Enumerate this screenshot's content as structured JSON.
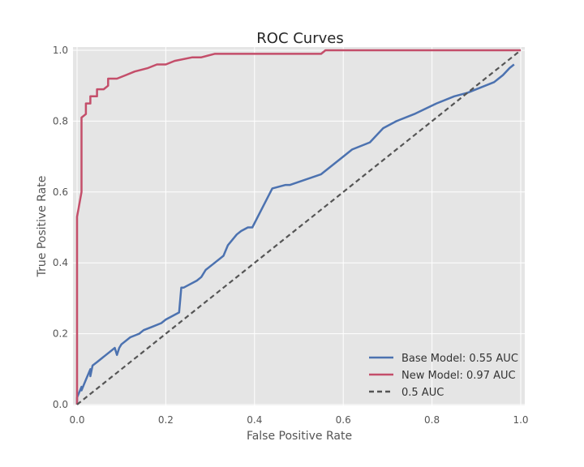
{
  "chart_data": {
    "type": "line",
    "title": "ROC Curves",
    "xlabel": "False Positive Rate",
    "ylabel": "True Positive Rate",
    "xlim": [
      0.0,
      1.0
    ],
    "ylim": [
      0.0,
      1.0
    ],
    "xticks": [
      "0.0",
      "0.2",
      "0.4",
      "0.6",
      "0.8",
      "1.0"
    ],
    "yticks": [
      "0.0",
      "0.2",
      "0.4",
      "0.6",
      "0.8",
      "1.0"
    ],
    "grid": true,
    "legend_position": "lower-right",
    "background": "#e5e5e5",
    "series": [
      {
        "name": "Base Model: 0.55 AUC",
        "color": "#4c72b0",
        "dash": "solid",
        "x": [
          0.0,
          0.0,
          0.01,
          0.01,
          0.02,
          0.03,
          0.03,
          0.035,
          0.045,
          0.065,
          0.085,
          0.09,
          0.095,
          0.1,
          0.12,
          0.14,
          0.15,
          0.17,
          0.19,
          0.2,
          0.23,
          0.235,
          0.24,
          0.27,
          0.28,
          0.29,
          0.31,
          0.33,
          0.34,
          0.36,
          0.37,
          0.385,
          0.395,
          0.44,
          0.47,
          0.48,
          0.55,
          0.6,
          0.62,
          0.66,
          0.69,
          0.72,
          0.76,
          0.81,
          0.85,
          0.88,
          0.9,
          0.94,
          0.95,
          0.96,
          0.975,
          0.985
        ],
        "y": [
          0.0,
          0.02,
          0.05,
          0.04,
          0.07,
          0.1,
          0.08,
          0.11,
          0.12,
          0.14,
          0.16,
          0.14,
          0.16,
          0.17,
          0.19,
          0.2,
          0.21,
          0.22,
          0.23,
          0.24,
          0.26,
          0.33,
          0.33,
          0.35,
          0.36,
          0.38,
          0.4,
          0.42,
          0.45,
          0.48,
          0.49,
          0.5,
          0.5,
          0.61,
          0.62,
          0.62,
          0.65,
          0.7,
          0.72,
          0.74,
          0.78,
          0.8,
          0.82,
          0.85,
          0.87,
          0.88,
          0.89,
          0.91,
          0.92,
          0.93,
          0.95,
          0.96
        ]
      },
      {
        "name": "New Model: 0.97 AUC",
        "color": "#c44e6a",
        "dash": "solid",
        "x": [
          0.0,
          0.0,
          0.01,
          0.01,
          0.02,
          0.02,
          0.03,
          0.03,
          0.045,
          0.045,
          0.06,
          0.07,
          0.07,
          0.09,
          0.11,
          0.13,
          0.16,
          0.18,
          0.2,
          0.22,
          0.26,
          0.28,
          0.31,
          0.4,
          0.55,
          0.56,
          0.7,
          0.8,
          0.9,
          1.0
        ],
        "y": [
          0.0,
          0.53,
          0.6,
          0.81,
          0.82,
          0.85,
          0.85,
          0.87,
          0.87,
          0.89,
          0.89,
          0.9,
          0.92,
          0.92,
          0.93,
          0.94,
          0.95,
          0.96,
          0.96,
          0.97,
          0.98,
          0.98,
          0.99,
          0.99,
          0.99,
          1.0,
          1.0,
          1.0,
          1.0,
          1.0
        ]
      },
      {
        "name": "0.5 AUC",
        "color": "#555555",
        "dash": "dashed",
        "x": [
          0.0,
          1.0
        ],
        "y": [
          0.0,
          1.0
        ]
      }
    ]
  }
}
